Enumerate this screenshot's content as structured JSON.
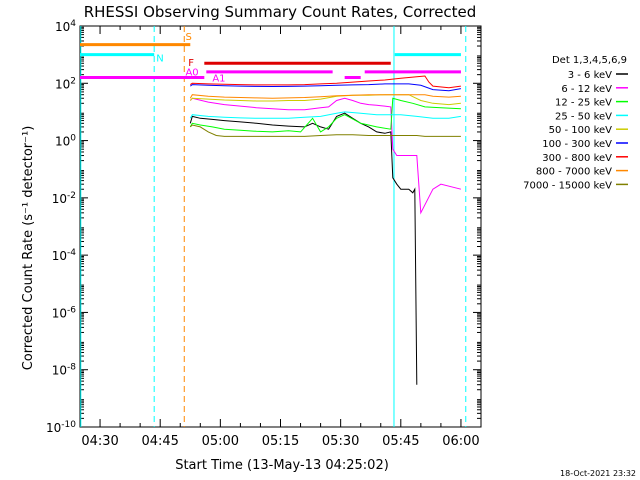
{
  "chart_data": {
    "type": "line",
    "title": "RHESSI Observing Summary Count Rates, Corrected",
    "xlabel": "Start Time (13-May-13 04:25:02)",
    "ylabel": "Corrected Count Rate (s⁻¹ detector⁻¹)",
    "x_unit": "minutes after 04:25:02",
    "xlim": [
      0,
      100
    ],
    "ylim": [
      1e-10,
      10000
    ],
    "y_scale": "log",
    "x_ticks": [
      {
        "x": 5,
        "label": "04:30"
      },
      {
        "x": 20,
        "label": "04:45"
      },
      {
        "x": 35,
        "label": "05:00"
      },
      {
        "x": 50,
        "label": "05:15"
      },
      {
        "x": 65,
        "label": "05:30"
      },
      {
        "x": 80,
        "label": "05:45"
      },
      {
        "x": 95,
        "label": "06:00"
      }
    ],
    "y_ticks": [
      {
        "exp": 4,
        "label": "10⁴"
      },
      {
        "exp": 2,
        "label": "10²"
      },
      {
        "exp": 0,
        "label": "10⁰"
      },
      {
        "exp": -2,
        "label": "10⁻²"
      },
      {
        "exp": -4,
        "label": "10⁻⁴"
      },
      {
        "exp": -6,
        "label": "10⁻⁶"
      },
      {
        "exp": -8,
        "label": "10⁻⁸"
      },
      {
        "exp": -10,
        "label": "10⁻¹⁰"
      }
    ],
    "legend_title": "Det 1,3,4,5,6,9",
    "legend_position": "right",
    "series": [
      {
        "name": "3 - 6 keV",
        "color": "#000000",
        "points": [
          [
            27.5,
            4
          ],
          [
            28,
            7
          ],
          [
            30,
            6
          ],
          [
            33,
            5.5
          ],
          [
            36,
            5
          ],
          [
            40,
            4.5
          ],
          [
            44,
            4
          ],
          [
            48,
            3.5
          ],
          [
            52,
            3.2
          ],
          [
            56,
            3
          ],
          [
            58,
            4
          ],
          [
            60,
            3
          ],
          [
            62,
            2.5
          ],
          [
            64,
            7
          ],
          [
            66,
            9
          ],
          [
            68,
            6
          ],
          [
            70,
            4
          ],
          [
            72,
            3
          ],
          [
            74,
            2
          ],
          [
            76,
            1.8
          ],
          [
            77.5,
            2
          ],
          [
            78,
            0.05
          ],
          [
            79,
            0.03
          ],
          [
            80,
            0.02
          ],
          [
            82,
            0.02
          ],
          [
            83,
            0.015
          ],
          [
            83.5,
            0.02
          ],
          [
            84,
            3e-09
          ]
        ]
      },
      {
        "name": "6 - 12 keV",
        "color": "#ff00ff",
        "points": [
          [
            27.5,
            25
          ],
          [
            28,
            30
          ],
          [
            32,
            22
          ],
          [
            36,
            18
          ],
          [
            40,
            16
          ],
          [
            44,
            14
          ],
          [
            48,
            13
          ],
          [
            52,
            12
          ],
          [
            56,
            12
          ],
          [
            60,
            14
          ],
          [
            62,
            15
          ],
          [
            64,
            25
          ],
          [
            66,
            30
          ],
          [
            68,
            25
          ],
          [
            70,
            20
          ],
          [
            72,
            18
          ],
          [
            74,
            17
          ],
          [
            76,
            16
          ],
          [
            77.5,
            15
          ],
          [
            78,
            0.5
          ],
          [
            79,
            0.3
          ],
          [
            84,
            0.3
          ],
          [
            85,
            0.003
          ],
          [
            88,
            0.02
          ],
          [
            90,
            0.03
          ],
          [
            95,
            0.02
          ]
        ]
      },
      {
        "name": "12 - 25 keV",
        "color": "#00ff00",
        "points": [
          [
            27.5,
            3
          ],
          [
            28,
            4
          ],
          [
            30,
            3.5
          ],
          [
            33,
            3
          ],
          [
            36,
            2.5
          ],
          [
            40,
            2.3
          ],
          [
            44,
            2.1
          ],
          [
            48,
            2
          ],
          [
            52,
            2.2
          ],
          [
            55,
            2
          ],
          [
            58,
            6
          ],
          [
            60,
            2
          ],
          [
            62,
            3
          ],
          [
            64,
            6
          ],
          [
            66,
            8
          ],
          [
            70,
            4
          ],
          [
            74,
            3
          ],
          [
            77.5,
            2.5
          ],
          [
            78,
            30
          ],
          [
            80,
            25
          ],
          [
            83,
            20
          ],
          [
            86,
            15
          ],
          [
            90,
            14
          ],
          [
            95,
            13
          ]
        ]
      },
      {
        "name": "25 - 50 keV",
        "color": "#00ffff",
        "points": [
          [
            27.5,
            6
          ],
          [
            28,
            8
          ],
          [
            32,
            7
          ],
          [
            36,
            6.5
          ],
          [
            40,
            6.2
          ],
          [
            44,
            6
          ],
          [
            48,
            6
          ],
          [
            52,
            6
          ],
          [
            56,
            6.5
          ],
          [
            60,
            7
          ],
          [
            64,
            9
          ],
          [
            66,
            10
          ],
          [
            70,
            9
          ],
          [
            74,
            8
          ],
          [
            77.5,
            8
          ],
          [
            78,
            8
          ],
          [
            80,
            8
          ],
          [
            84,
            7
          ],
          [
            88,
            6
          ],
          [
            92,
            6
          ],
          [
            95,
            7
          ]
        ]
      },
      {
        "name": "50 - 100 keV",
        "color": "#cccc00",
        "points": [
          [
            27.5,
            25
          ],
          [
            28,
            30
          ],
          [
            32,
            28
          ],
          [
            36,
            26
          ],
          [
            40,
            25
          ],
          [
            44,
            24
          ],
          [
            48,
            24
          ],
          [
            52,
            25
          ],
          [
            56,
            25
          ],
          [
            60,
            28
          ],
          [
            64,
            35
          ],
          [
            68,
            38
          ],
          [
            72,
            38
          ],
          [
            76,
            40
          ],
          [
            77.5,
            40
          ],
          [
            78,
            40
          ],
          [
            82,
            40
          ],
          [
            85,
            25
          ],
          [
            88,
            20
          ],
          [
            92,
            18
          ],
          [
            95,
            20
          ]
        ]
      },
      {
        "name": "100 - 300 keV",
        "color": "#0000ff",
        "points": [
          [
            27.5,
            80
          ],
          [
            28,
            90
          ],
          [
            32,
            85
          ],
          [
            36,
            82
          ],
          [
            40,
            80
          ],
          [
            44,
            78
          ],
          [
            48,
            77
          ],
          [
            52,
            78
          ],
          [
            56,
            80
          ],
          [
            60,
            82
          ],
          [
            64,
            85
          ],
          [
            68,
            88
          ],
          [
            72,
            90
          ],
          [
            76,
            95
          ],
          [
            77.5,
            95
          ],
          [
            78,
            95
          ],
          [
            82,
            95
          ],
          [
            85,
            85
          ],
          [
            88,
            60
          ],
          [
            92,
            55
          ],
          [
            95,
            65
          ]
        ]
      },
      {
        "name": "300 - 800 keV",
        "color": "#ff0000",
        "points": [
          [
            27.5,
            90
          ],
          [
            28,
            100
          ],
          [
            32,
            95
          ],
          [
            36,
            92
          ],
          [
            40,
            90
          ],
          [
            44,
            88
          ],
          [
            48,
            88
          ],
          [
            52,
            88
          ],
          [
            56,
            90
          ],
          [
            60,
            95
          ],
          [
            64,
            100
          ],
          [
            68,
            110
          ],
          [
            72,
            120
          ],
          [
            76,
            130
          ],
          [
            80,
            150
          ],
          [
            84,
            170
          ],
          [
            86,
            180
          ],
          [
            87,
            110
          ],
          [
            88,
            80
          ],
          [
            92,
            70
          ],
          [
            95,
            80
          ]
        ]
      },
      {
        "name": "800 - 7000 keV",
        "color": "#ff8800",
        "points": [
          [
            27.5,
            30
          ],
          [
            28,
            40
          ],
          [
            32,
            35
          ],
          [
            36,
            33
          ],
          [
            40,
            32
          ],
          [
            44,
            31
          ],
          [
            48,
            30
          ],
          [
            52,
            31
          ],
          [
            56,
            32
          ],
          [
            60,
            34
          ],
          [
            64,
            37
          ],
          [
            68,
            38
          ],
          [
            72,
            40
          ],
          [
            76,
            40
          ],
          [
            80,
            40
          ],
          [
            84,
            40
          ],
          [
            86,
            40
          ],
          [
            88,
            35
          ],
          [
            92,
            33
          ],
          [
            95,
            35
          ]
        ]
      },
      {
        "name": "7000 - 15000 keV",
        "color": "#808000",
        "points": [
          [
            27.5,
            3
          ],
          [
            28,
            3.5
          ],
          [
            30,
            3
          ],
          [
            32,
            2
          ],
          [
            34,
            1.5
          ],
          [
            36,
            1.4
          ],
          [
            40,
            1.4
          ],
          [
            44,
            1.4
          ],
          [
            48,
            1.4
          ],
          [
            52,
            1.4
          ],
          [
            56,
            1.4
          ],
          [
            60,
            1.5
          ],
          [
            64,
            1.6
          ],
          [
            68,
            1.6
          ],
          [
            72,
            1.5
          ],
          [
            76,
            1.5
          ],
          [
            78,
            1.5
          ],
          [
            80,
            1.5
          ],
          [
            84,
            1.5
          ],
          [
            86,
            1.4
          ],
          [
            90,
            1.4
          ],
          [
            95,
            1.4
          ]
        ]
      }
    ],
    "state_bars": [
      {
        "label": "S",
        "color": "#ff8800",
        "exp": 3.35,
        "segments": [
          [
            0,
            27.5
          ]
        ]
      },
      {
        "label": "N",
        "color": "#00ffff",
        "exp": 3.0,
        "segments": [
          [
            0,
            18.5
          ],
          [
            78.5,
            95
          ]
        ]
      },
      {
        "label": "F",
        "color": "#dd0000",
        "exp": 2.7,
        "segments": [
          [
            31,
            77.5
          ]
        ]
      },
      {
        "label": "A0",
        "color": "#ff00ff",
        "exp": 2.4,
        "segments": [
          [
            31.5,
            63
          ],
          [
            71,
            95
          ]
        ]
      },
      {
        "label": "A1",
        "color": "#ff00ff",
        "exp": 2.2,
        "segments": [
          [
            0,
            31
          ],
          [
            66,
            70
          ]
        ]
      }
    ],
    "state_labels": [
      {
        "text": "S",
        "x": 26.3,
        "exp": 3.65,
        "color": "#ff8800"
      },
      {
        "text": "N",
        "x": 19.0,
        "exp": 2.9,
        "color": "#00ffff"
      },
      {
        "text": "F",
        "x": 27.0,
        "exp": 2.75,
        "color": "#dd0000"
      },
      {
        "text": "A0",
        "x": 26.3,
        "exp": 2.42,
        "color": "#ff00ff"
      },
      {
        "text": "A1",
        "x": 33.0,
        "exp": 2.2,
        "color": "#ff00ff"
      }
    ],
    "vlines": [
      {
        "x": 0.2,
        "color": "#00ffff",
        "style": "solid"
      },
      {
        "x": 18.5,
        "color": "#00ffff",
        "style": "dashed"
      },
      {
        "x": 26.0,
        "color": "#ff8800",
        "style": "dashed"
      },
      {
        "x": 78.3,
        "color": "#00ffff",
        "style": "solid"
      },
      {
        "x": 96.2,
        "color": "#00ffff",
        "style": "dashed"
      }
    ]
  },
  "footer": {
    "timestamp": "18-Oct-2021 23:32"
  }
}
